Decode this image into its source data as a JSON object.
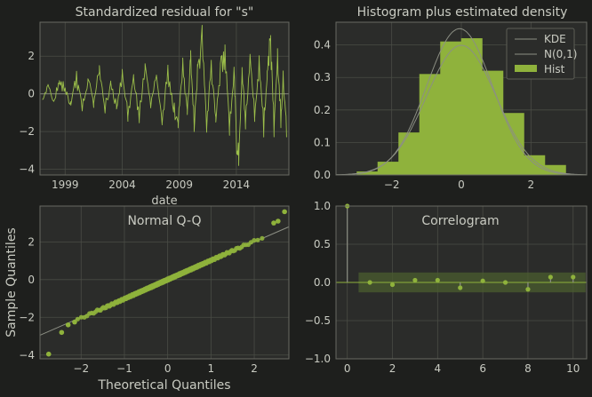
{
  "theme": {
    "background": "#1e1f1d",
    "axes_face": "#2b2c2a",
    "grid": "#4a4c45",
    "spine": "#686a62",
    "text": "#c9cbc2",
    "accent": "#8fb23c",
    "accent_light": "#9cbf4a",
    "reference_line": "#8c8f84"
  },
  "chart_data": [
    {
      "type": "line",
      "title": "Standardized residual for \"s\"",
      "xlabel": "date",
      "ylabel": "",
      "xlim": [
        1996.8,
        2018.6
      ],
      "ylim": [
        -4.3,
        3.8
      ],
      "x_ticks": [
        1999,
        2004,
        2009,
        2014
      ],
      "x_tick_labels": [
        "1999",
        "2004",
        "2009",
        "2014"
      ],
      "y_ticks": [
        -4,
        -2,
        0,
        2
      ],
      "y_tick_labels": [
        "−4",
        "−2",
        "0",
        "2"
      ],
      "grid": true,
      "series": [
        {
          "x": [
            1997.0,
            1997.5,
            1998.0,
            1998.5,
            1999.0,
            1999.5,
            2000.0,
            2000.5,
            2001.0,
            2001.5,
            2002.0,
            2002.5,
            2003.0,
            2003.5,
            2004.0,
            2004.5,
            2005.0,
            2005.5,
            2006.0,
            2006.5,
            2007.0,
            2007.5,
            2008.0,
            2008.5,
            2008.9,
            2009.3,
            2009.7,
            2010.0,
            2010.3,
            2010.6,
            2011.0,
            2011.4,
            2011.8,
            2012.2,
            2012.6,
            2013.0,
            2013.4,
            2013.8,
            2014.0,
            2014.2,
            2014.5,
            2014.8,
            2015.2,
            2015.6,
            2016.0,
            2016.4,
            2016.7,
            2017.0,
            2017.3,
            2017.6,
            2017.9,
            2018.1,
            2018.4
          ],
          "values": [
            -0.3,
            0.5,
            -0.4,
            0.7,
            0.3,
            -0.6,
            1.2,
            -0.9,
            0.8,
            -0.5,
            1.5,
            -1.0,
            0.6,
            -0.8,
            1.3,
            -1.2,
            0.9,
            -1.4,
            1.6,
            -0.7,
            1.0,
            -1.6,
            1.4,
            -0.9,
            -1.8,
            1.9,
            -1.1,
            2.3,
            -2.0,
            1.4,
            3.3,
            -1.9,
            1.7,
            -1.5,
            1.6,
            2.6,
            -1.8,
            1.3,
            -2.6,
            -3.8,
            1.4,
            -1.6,
            2.1,
            -1.3,
            1.8,
            -2.1,
            1.2,
            3.1,
            -2.0,
            2.4,
            -1.6,
            1.0,
            -2.3
          ]
        }
      ],
      "reference_line": 0
    },
    {
      "type": "bar",
      "title": "Histogram plus estimated density",
      "xlabel": "",
      "ylabel": "",
      "xlim": [
        -3.6,
        3.6
      ],
      "ylim": [
        0,
        0.47
      ],
      "x_ticks": [
        -2,
        0,
        2
      ],
      "x_tick_labels": [
        "−2",
        "0",
        "2"
      ],
      "y_ticks": [
        0.0,
        0.1,
        0.2,
        0.3,
        0.4
      ],
      "y_tick_labels": [
        "0.0",
        "0.1",
        "0.2",
        "0.3",
        "0.4"
      ],
      "grid": true,
      "legend": {
        "placement": "top-right",
        "entries": [
          "KDE",
          "N(0,1)",
          "Hist"
        ]
      },
      "bin_edges": [
        -3.0,
        -2.4,
        -1.8,
        -1.2,
        -0.6,
        0.0,
        0.6,
        1.2,
        1.8,
        2.4,
        3.0
      ],
      "bin_values": [
        0.01,
        0.04,
        0.13,
        0.31,
        0.41,
        0.42,
        0.32,
        0.19,
        0.06,
        0.03
      ],
      "series": [
        {
          "name": "KDE",
          "kind": "kde",
          "peak_x": -0.05,
          "sigma": 0.95,
          "peak": 0.45
        },
        {
          "name": "N(0,1)",
          "kind": "normal",
          "mu": 0,
          "sigma": 1
        }
      ]
    },
    {
      "type": "scatter",
      "title": "Normal Q-Q",
      "xlabel": "Theoretical Quantiles",
      "ylabel": "Sample Quantiles",
      "xlim": [
        -2.95,
        2.8
      ],
      "ylim": [
        -4.2,
        3.9
      ],
      "x_ticks": [
        -2,
        -1,
        0,
        1,
        2
      ],
      "x_tick_labels": [
        "−2",
        "−1",
        "0",
        "1",
        "2"
      ],
      "y_ticks": [
        -4,
        -2,
        0,
        2
      ],
      "y_tick_labels": [
        "−4",
        "−2",
        "0",
        "2"
      ],
      "grid": true,
      "sample_count": 240,
      "outliers": [
        {
          "x": -2.75,
          "y": -3.95
        },
        {
          "x": -2.45,
          "y": -2.8
        },
        {
          "x": -2.3,
          "y": -2.4
        },
        {
          "x": -2.15,
          "y": -2.25
        },
        {
          "x": 2.45,
          "y": 3.0
        },
        {
          "x": 2.55,
          "y": 3.1
        },
        {
          "x": 2.7,
          "y": 3.6
        }
      ],
      "reference_line": {
        "slope": 1.0,
        "intercept": 0.0
      }
    },
    {
      "type": "bar",
      "title": "Correlogram",
      "xlabel": "",
      "ylabel": "",
      "xlim": [
        -0.5,
        10.6
      ],
      "ylim": [
        -1.0,
        1.0
      ],
      "x_ticks": [
        0,
        2,
        4,
        6,
        8,
        10
      ],
      "x_tick_labels": [
        "0",
        "2",
        "4",
        "6",
        "8",
        "10"
      ],
      "y_ticks": [
        -1.0,
        -0.5,
        0.0,
        0.5,
        1.0
      ],
      "y_tick_labels": [
        "−1.0",
        "−0.5",
        "0.0",
        "0.5",
        "1.0"
      ],
      "grid": true,
      "lags": [
        0,
        1,
        2,
        3,
        4,
        5,
        6,
        7,
        8,
        9,
        10
      ],
      "values": [
        1.0,
        0.0,
        -0.03,
        0.03,
        0.03,
        -0.07,
        0.02,
        0.0,
        -0.09,
        0.07,
        0.07
      ],
      "confidence_band": 0.13
    }
  ]
}
